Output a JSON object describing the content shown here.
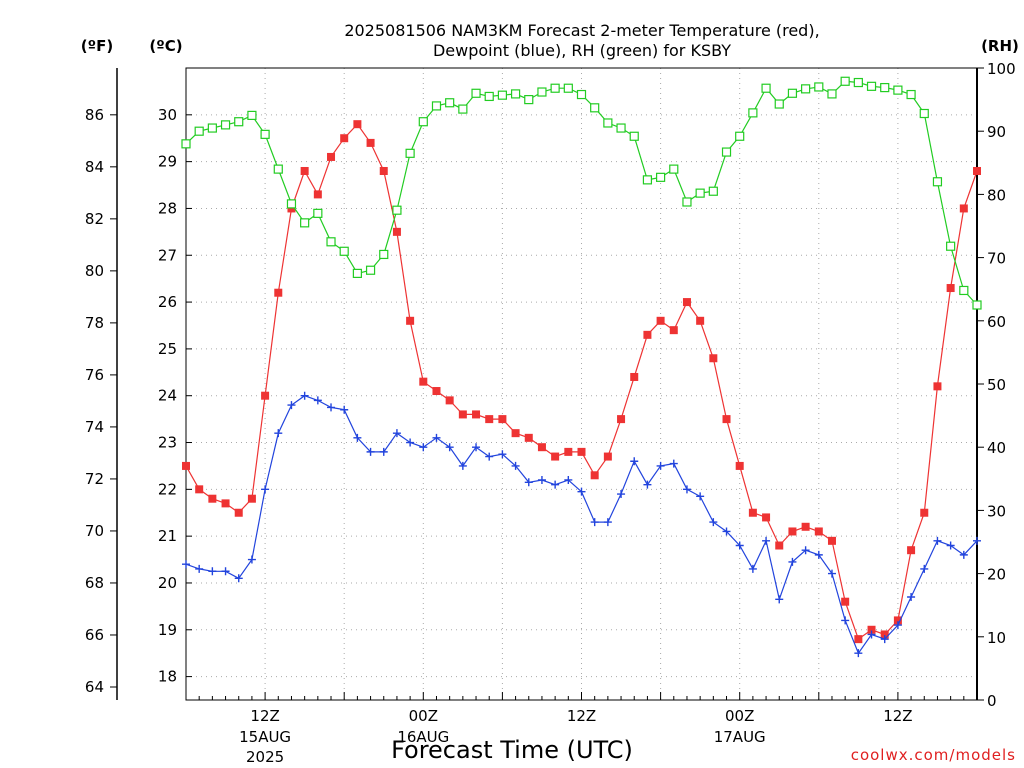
{
  "chart_data": {
    "type": "line",
    "title_line1": "2025081506 NAM3KM Forecast 2-meter Temperature (red),",
    "title_line2": "Dewpoint (blue), RH (green) for KSBY",
    "xlabel": "Forecast Time (UTC)",
    "credit": "coolwx.com/models",
    "units": {
      "f": "(ºF)",
      "c": "(ºC)",
      "rh": "(RH)"
    },
    "x_ticks": [
      {
        "hour": 6,
        "label1": "12Z",
        "label2": "15AUG",
        "label3": "2025"
      },
      {
        "hour": 18,
        "label1": "00Z",
        "label2": "16AUG",
        "label3": ""
      },
      {
        "hour": 30,
        "label1": "12Z",
        "label2": "",
        "label3": ""
      },
      {
        "hour": 42,
        "label1": "00Z",
        "label2": "17AUG",
        "label3": ""
      },
      {
        "hour": 54,
        "label1": "12Z",
        "label2": "",
        "label3": ""
      }
    ],
    "xlim_hours": [
      0,
      60
    ],
    "ylim_c": [
      17.5,
      31
    ],
    "yticks_c": [
      18,
      19,
      20,
      21,
      22,
      23,
      24,
      25,
      26,
      27,
      28,
      29,
      30
    ],
    "yticks_f": [
      64,
      66,
      68,
      70,
      72,
      74,
      76,
      78,
      80,
      82,
      84,
      86
    ],
    "ylim_rh": [
      0,
      100
    ],
    "yticks_rh": [
      0,
      10,
      20,
      30,
      40,
      50,
      60,
      70,
      80,
      90,
      100
    ],
    "grid": true,
    "series": [
      {
        "name": "2-meter Temperature",
        "axis": "c",
        "color": "#ee3333",
        "marker": "filled-square",
        "values": [
          22.5,
          22.0,
          21.8,
          21.7,
          21.5,
          21.8,
          24.0,
          26.2,
          28.0,
          28.8,
          28.3,
          29.1,
          29.5,
          29.8,
          29.4,
          28.8,
          27.5,
          25.6,
          24.3,
          24.1,
          23.9,
          23.6,
          23.6,
          23.5,
          23.5,
          23.2,
          23.1,
          22.9,
          22.7,
          22.8,
          22.8,
          22.3,
          22.7,
          23.5,
          24.4,
          25.3,
          25.6,
          25.4,
          26.0,
          25.6,
          24.8,
          23.5,
          22.5,
          21.5,
          21.4,
          20.8,
          21.1,
          21.2,
          21.1,
          20.9,
          19.6,
          18.8,
          19.0,
          18.9,
          19.2,
          20.7,
          21.5,
          24.2,
          26.3,
          28.0,
          28.8
        ]
      },
      {
        "name": "Dewpoint",
        "axis": "c",
        "color": "#2244dd",
        "marker": "plus",
        "values": [
          20.4,
          20.3,
          20.25,
          20.25,
          20.1,
          20.5,
          22.0,
          23.2,
          23.8,
          24.0,
          23.9,
          23.75,
          23.7,
          23.1,
          22.8,
          22.8,
          23.2,
          23.0,
          22.9,
          23.1,
          22.9,
          22.5,
          22.9,
          22.7,
          22.75,
          22.5,
          22.15,
          22.2,
          22.1,
          22.2,
          21.95,
          21.3,
          21.3,
          21.9,
          22.6,
          22.1,
          22.5,
          22.55,
          22.0,
          21.85,
          21.3,
          21.1,
          20.8,
          20.3,
          20.9,
          19.65,
          20.45,
          20.7,
          20.6,
          20.2,
          19.2,
          18.5,
          18.9,
          18.8,
          19.1,
          19.7,
          20.3,
          20.9,
          20.8,
          20.6,
          20.9
        ]
      },
      {
        "name": "RH",
        "axis": "rh",
        "color": "#22cc22",
        "marker": "open-square",
        "values": [
          88,
          90,
          90.5,
          91,
          91.5,
          92.5,
          89.5,
          84,
          78.5,
          75.5,
          77,
          72.5,
          71,
          67.5,
          68,
          70.5,
          77.5,
          86.5,
          91.5,
          94,
          94.5,
          93.5,
          96,
          95.5,
          95.7,
          95.9,
          95,
          96.2,
          96.8,
          96.8,
          95.8,
          93.7,
          91.3,
          90.5,
          89.2,
          82.3,
          82.7,
          84,
          78.8,
          80.2,
          80.5,
          86.7,
          89.2,
          92.9,
          96.8,
          94.3,
          96,
          96.7,
          97,
          95.9,
          97.9,
          97.7,
          97.1,
          96.9,
          96.5,
          95.8,
          92.8,
          82,
          71.8,
          64.8,
          62.5
        ]
      }
    ]
  }
}
